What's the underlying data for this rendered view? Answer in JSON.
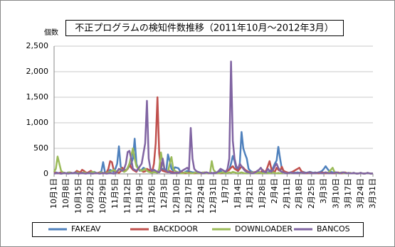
{
  "chart_data": {
    "type": "line",
    "title": "不正プログラムの検知件数推移（2011年10月～2012年3月）",
    "y_label": "個数",
    "categories": [
      "10月1日",
      null,
      null,
      null,
      null,
      null,
      null,
      "10月8日",
      null,
      null,
      null,
      null,
      null,
      null,
      "10月15日",
      null,
      null,
      null,
      null,
      null,
      null,
      "10月22日",
      null,
      null,
      null,
      null,
      null,
      null,
      "10月29日",
      null,
      null,
      null,
      null,
      null,
      null,
      "11月5日",
      null,
      null,
      null,
      null,
      null,
      null,
      "11月12日",
      null,
      null,
      null,
      null,
      null,
      null,
      "11月19日",
      null,
      null,
      null,
      null,
      null,
      null,
      "11月26日",
      null,
      null,
      null,
      null,
      null,
      null,
      "12月3日",
      null,
      null,
      null,
      null,
      null,
      null,
      "12月10日",
      null,
      null,
      null,
      null,
      null,
      null,
      "12月17日",
      null,
      null,
      null,
      null,
      null,
      null,
      "12月24日",
      null,
      null,
      null,
      null,
      null,
      null,
      "12月31日",
      null,
      null,
      null,
      null,
      null,
      null,
      "1月7日",
      null,
      null,
      null,
      null,
      null,
      null,
      "1月14日",
      null,
      null,
      null,
      null,
      null,
      null,
      "1月21日",
      null,
      null,
      null,
      null,
      null,
      null,
      "1月28日",
      null,
      null,
      null,
      null,
      null,
      null,
      "2月4日",
      null,
      null,
      null,
      null,
      null,
      null,
      "2月11日",
      null,
      null,
      null,
      null,
      null,
      null,
      "2月18日",
      null,
      null,
      null,
      null,
      null,
      null,
      "2月25日",
      null,
      null,
      null,
      null,
      null,
      null,
      "3月3日",
      null,
      null,
      null,
      null,
      null,
      null,
      "3月10日",
      null,
      null,
      null,
      null,
      null,
      null,
      "3月17日",
      null,
      null,
      null,
      null,
      null,
      null,
      "3月24日",
      null,
      null,
      null,
      null,
      null,
      null,
      "3月31日"
    ],
    "series": [
      {
        "name": "FAKEAV",
        "color": "#4f81bd",
        "values": [
          10,
          30,
          20,
          10,
          5,
          10,
          20,
          10,
          30,
          20,
          10,
          20,
          10,
          30,
          20,
          10,
          20,
          10,
          30,
          20,
          10,
          20,
          30,
          40,
          20,
          10,
          30,
          50,
          230,
          40,
          20,
          30,
          80,
          60,
          40,
          100,
          200,
          540,
          150,
          60,
          50,
          80,
          100,
          150,
          200,
          300,
          690,
          200,
          100,
          60,
          80,
          120,
          100,
          60,
          50,
          40,
          30,
          60,
          50,
          40,
          30,
          80,
          100,
          50,
          40,
          380,
          250,
          100,
          60,
          130,
          120,
          110,
          50,
          30,
          20,
          40,
          60,
          50,
          40,
          30,
          30,
          20,
          40,
          30,
          20,
          10,
          20,
          30,
          20,
          10,
          10,
          20,
          30,
          20,
          40,
          60,
          30,
          20,
          40,
          60,
          80,
          200,
          350,
          250,
          100,
          50,
          200,
          820,
          500,
          390,
          300,
          100,
          60,
          40,
          30,
          20,
          30,
          40,
          20,
          30,
          40,
          30,
          20,
          50,
          80,
          120,
          200,
          260,
          530,
          300,
          100,
          60,
          40,
          30,
          20,
          30,
          40,
          30,
          20,
          30,
          20,
          30,
          40,
          30,
          20,
          30,
          40,
          30,
          20,
          30,
          20,
          30,
          40,
          60,
          100,
          150,
          100,
          60,
          40,
          30,
          20,
          30,
          20,
          10,
          20,
          30,
          20,
          10,
          20,
          10,
          10,
          20,
          10,
          5,
          10,
          20,
          10,
          5,
          10,
          20,
          10,
          5,
          10
        ]
      },
      {
        "name": "BACKDOOR",
        "color": "#c0504d",
        "values": [
          30,
          20,
          10,
          20,
          30,
          10,
          20,
          10,
          20,
          30,
          20,
          10,
          30,
          60,
          40,
          30,
          80,
          60,
          30,
          20,
          40,
          60,
          30,
          20,
          10,
          20,
          30,
          20,
          10,
          20,
          30,
          100,
          250,
          230,
          80,
          40,
          30,
          20,
          50,
          120,
          80,
          60,
          100,
          200,
          120,
          80,
          60,
          40,
          100,
          80,
          60,
          40,
          50,
          100,
          80,
          60,
          40,
          200,
          600,
          1500,
          400,
          100,
          60,
          50,
          40,
          30,
          60,
          40,
          30,
          20,
          20,
          30,
          40,
          30,
          20,
          10,
          20,
          30,
          20,
          10,
          10,
          20,
          30,
          20,
          10,
          20,
          30,
          20,
          10,
          20,
          20,
          10,
          20,
          30,
          20,
          10,
          20,
          30,
          50,
          60,
          80,
          120,
          150,
          100,
          80,
          60,
          100,
          150,
          120,
          80,
          60,
          40,
          30,
          20,
          30,
          40,
          30,
          20,
          30,
          80,
          40,
          60,
          150,
          250,
          100,
          60,
          40,
          120,
          80,
          60,
          140,
          60,
          40,
          30,
          20,
          30,
          40,
          60,
          80,
          100,
          120,
          60,
          30,
          20,
          10,
          20,
          30,
          20,
          10,
          20,
          20,
          10,
          20,
          30,
          20,
          10,
          20,
          30,
          20,
          10,
          10,
          20,
          30,
          20,
          10,
          20,
          30,
          20,
          10,
          20,
          10,
          20,
          10,
          5,
          10,
          20,
          10,
          5,
          10,
          20,
          10,
          5,
          10
        ]
      },
      {
        "name": "DOWNLOADER",
        "color": "#9bbb59",
        "values": [
          40,
          100,
          340,
          200,
          60,
          30,
          20,
          10,
          20,
          30,
          20,
          10,
          20,
          30,
          20,
          10,
          20,
          30,
          20,
          10,
          20,
          30,
          40,
          30,
          20,
          10,
          20,
          30,
          20,
          10,
          20,
          30,
          40,
          60,
          80,
          60,
          40,
          80,
          100,
          60,
          40,
          60,
          120,
          200,
          350,
          500,
          300,
          150,
          100,
          80,
          60,
          80,
          100,
          60,
          40,
          30,
          20,
          40,
          30,
          20,
          100,
          420,
          200,
          100,
          60,
          40,
          200,
          330,
          100,
          60,
          40,
          30,
          20,
          10,
          20,
          30,
          20,
          10,
          20,
          10,
          20,
          30,
          20,
          10,
          20,
          30,
          20,
          10,
          20,
          10,
          250,
          80,
          40,
          20,
          10,
          20,
          30,
          20,
          10,
          20,
          30,
          20,
          40,
          30,
          20,
          10,
          20,
          30,
          20,
          10,
          20,
          10,
          20,
          30,
          20,
          10,
          20,
          30,
          20,
          10,
          20,
          30,
          20,
          10,
          20,
          30,
          20,
          10,
          20,
          10,
          20,
          30,
          20,
          10,
          20,
          30,
          20,
          10,
          20,
          10,
          20,
          30,
          20,
          10,
          20,
          30,
          20,
          10,
          20,
          10,
          20,
          30,
          20,
          10,
          20,
          30,
          20,
          40,
          80,
          120,
          40,
          20,
          10,
          20,
          30,
          20,
          10,
          20,
          10,
          20,
          10,
          20,
          10,
          5,
          10,
          20,
          10,
          5,
          10,
          20,
          10,
          5,
          10
        ]
      },
      {
        "name": "BANCOS",
        "color": "#8064a2",
        "values": [
          5,
          10,
          20,
          10,
          5,
          10,
          20,
          10,
          5,
          10,
          20,
          10,
          30,
          10,
          5,
          10,
          20,
          10,
          5,
          10,
          20,
          10,
          5,
          10,
          20,
          10,
          5,
          10,
          20,
          10,
          5,
          10,
          20,
          10,
          5,
          10,
          50,
          100,
          80,
          60,
          100,
          200,
          430,
          450,
          300,
          100,
          80,
          60,
          100,
          150,
          200,
          400,
          600,
          1430,
          300,
          100,
          60,
          80,
          60,
          40,
          30,
          80,
          300,
          100,
          60,
          40,
          30,
          20,
          10,
          20,
          30,
          20,
          40,
          60,
          80,
          100,
          120,
          80,
          900,
          300,
          100,
          60,
          40,
          30,
          20,
          10,
          20,
          30,
          20,
          10,
          20,
          10,
          20,
          30,
          60,
          100,
          80,
          60,
          40,
          100,
          300,
          2200,
          650,
          300,
          150,
          100,
          200,
          150,
          100,
          60,
          40,
          30,
          20,
          10,
          20,
          30,
          60,
          80,
          120,
          60,
          40,
          30,
          100,
          60,
          40,
          80,
          150,
          200,
          120,
          60,
          40,
          30,
          20,
          10,
          20,
          30,
          20,
          10,
          20,
          10,
          20,
          30,
          20,
          10,
          20,
          30,
          20,
          10,
          20,
          10,
          20,
          30,
          20,
          10,
          20,
          30,
          20,
          10,
          20,
          10,
          20,
          30,
          20,
          10,
          20,
          30,
          20,
          10,
          20,
          10,
          10,
          20,
          10,
          5,
          10,
          20,
          10,
          5,
          10,
          20,
          10,
          5,
          10
        ]
      }
    ],
    "ylim": [
      0,
      2500
    ],
    "yticks": [
      0,
      500,
      {
        "value": 1000,
        "label": "1,000"
      },
      {
        "value": 1500,
        "label": "1,500"
      },
      {
        "value": 2000,
        "label": "2,000"
      },
      {
        "value": 2500,
        "label": "2,500"
      }
    ],
    "grid": true,
    "legend": "bottom"
  }
}
